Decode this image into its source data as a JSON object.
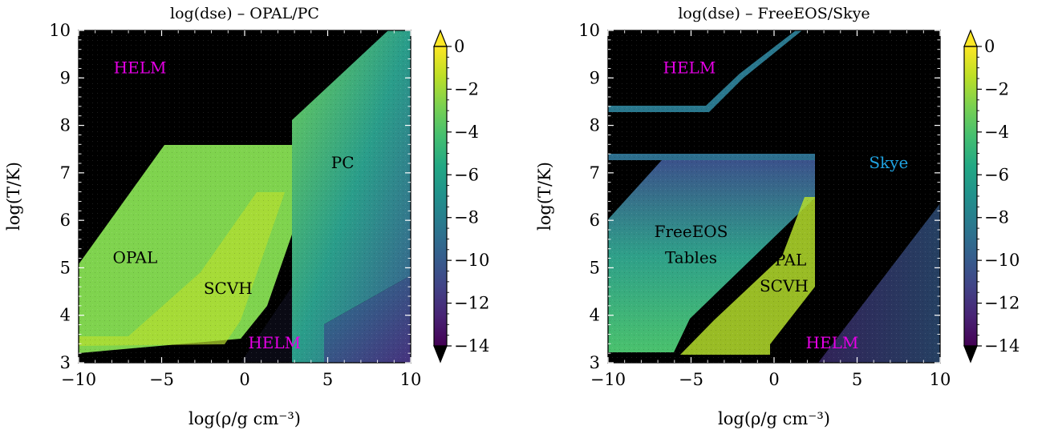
{
  "chart_data": [
    {
      "type": "heatmap",
      "title": "log(dse) – OPAL/PC",
      "xlabel": "log(ρ/g cm⁻³)",
      "ylabel": "log(T/K)",
      "xlim": [
        -10,
        10
      ],
      "ylim": [
        3,
        10
      ],
      "xticks": [
        "−10",
        "−5",
        "0",
        "5",
        "10"
      ],
      "yticks": [
        "3",
        "4",
        "5",
        "6",
        "7",
        "8",
        "9",
        "10"
      ],
      "colorbar": {
        "colormap": "viridis",
        "range": [
          -14,
          0
        ],
        "ticks": [
          "0",
          "−2",
          "−4",
          "−6",
          "−8",
          "−10",
          "−12",
          "−14"
        ],
        "extend": "both"
      },
      "background_color": "#000000",
      "regions": [
        {
          "label": "HELM",
          "color": "#e600e6",
          "x": -6.3,
          "y": 9.1
        },
        {
          "label": "OPAL",
          "color": "#000000",
          "x": -6.6,
          "y": 5.1
        },
        {
          "label": "SCVH",
          "color": "#000000",
          "x": -1.0,
          "y": 4.45
        },
        {
          "label": "PC",
          "color": "#000000",
          "x": 5.9,
          "y": 7.1
        },
        {
          "label": "HELM",
          "color": "#e600e6",
          "x": 1.8,
          "y": 3.3
        }
      ]
    },
    {
      "type": "heatmap",
      "title": "log(dse) – FreeEOS/Skye",
      "xlabel": "log(ρ/g cm⁻³)",
      "ylabel": "log(T/K)",
      "xlim": [
        -10,
        10
      ],
      "ylim": [
        3,
        10
      ],
      "xticks": [
        "−10",
        "−5",
        "0",
        "5",
        "10"
      ],
      "yticks": [
        "3",
        "4",
        "5",
        "6",
        "7",
        "8",
        "9",
        "10"
      ],
      "colorbar": {
        "colormap": "viridis",
        "range": [
          -14,
          0
        ],
        "ticks": [
          "0",
          "−2",
          "−4",
          "−6",
          "−8",
          "−10",
          "−12",
          "−14"
        ],
        "extend": "both"
      },
      "background_color": "#000000",
      "regions": [
        {
          "label": "HELM",
          "color": "#e600e6",
          "x": -5.1,
          "y": 9.1
        },
        {
          "label": "Skye",
          "color": "#1fa2e0",
          "x": 6.9,
          "y": 7.1
        },
        {
          "label": "FreeEOS",
          "color": "#000000",
          "x": -5.0,
          "y": 5.65
        },
        {
          "label": "Tables",
          "color": "#000000",
          "x": -5.0,
          "y": 5.1
        },
        {
          "label": "OPAL",
          "color": "#000000",
          "x": 0.6,
          "y": 5.05
        },
        {
          "label": "SCVH",
          "color": "#000000",
          "x": 0.6,
          "y": 4.5
        },
        {
          "label": "HELM",
          "color": "#e600e6",
          "x": 3.5,
          "y": 3.3
        }
      ]
    }
  ]
}
